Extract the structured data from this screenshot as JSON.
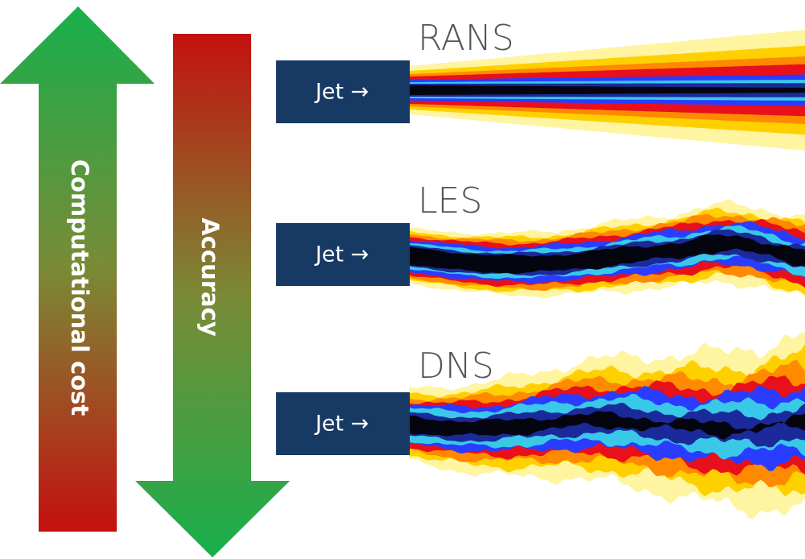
{
  "arrows": {
    "up": "Computational cost",
    "down": "Accuracy"
  },
  "panels": [
    {
      "title": "RANS",
      "box": "Jet →"
    },
    {
      "title": "LES",
      "box": "Jet →"
    },
    {
      "title": "DNS",
      "box": "Jet →"
    }
  ]
}
